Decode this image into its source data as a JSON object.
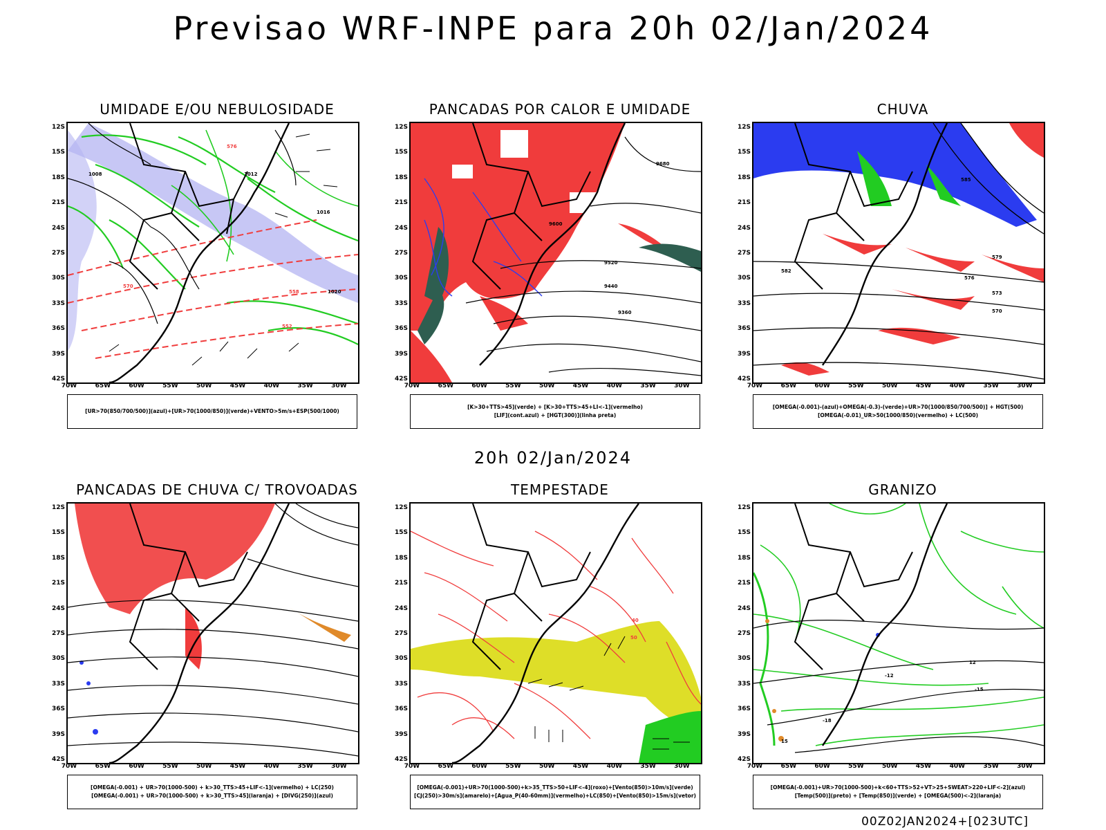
{
  "header": {
    "title": "Previsao WRF-INPE  para 20h 02/Jan/2024"
  },
  "middle": {
    "title": "20h 02/Jan/2024"
  },
  "footer": {
    "stamp": "00Z02JAN2024+[023UTC]"
  },
  "axes": {
    "lat_labels": [
      "12S",
      "15S",
      "18S",
      "21S",
      "24S",
      "27S",
      "30S",
      "33S",
      "36S",
      "39S",
      "42S"
    ],
    "lon_labels": [
      "70W",
      "65W",
      "60W",
      "55W",
      "50W",
      "45W",
      "40W",
      "35W",
      "30W"
    ]
  },
  "panels": [
    {
      "title": "UMIDADE E/OU NEBULOSIDADE",
      "legend": [
        "[UR>70(850/700/500)](azul)+[UR>70(1000/850)](verde)+VENTO>5m/s+ESP(500/1000)"
      ],
      "contour_labels": [
        "1008",
        "1012",
        "1016",
        "1020",
        "570",
        "576",
        "558",
        "552"
      ]
    },
    {
      "title": "PANCADAS POR CALOR E UMIDADE",
      "legend": [
        "[K>30+TTS>45](verde) + [K>30+TTS>45+LI<-1](vermelho)",
        "[LIF](cont.azul) + [HGT(300)](linha preta)"
      ],
      "contour_labels": [
        "9680",
        "9600",
        "9520",
        "9440",
        "9360"
      ]
    },
    {
      "title": "CHUVA",
      "legend": [
        "[OMEGA(-0.001)-(azul)+OMEGA(-0.3)-(verde)+UR>70(1000/850/700/500)] + HGT(500)",
        "[OMEGA(-0.01)_UR>50(1000/850)(vermelho) + LC(500)"
      ],
      "contour_labels": [
        "579",
        "576",
        "573",
        "570",
        "582",
        "585"
      ]
    },
    {
      "title": "PANCADAS DE CHUVA C/ TROVOADAS",
      "legend": [
        "[OMEGA(-0.001) + UR>70(1000-500) + k>30_TTS>45+LIF<-1](vermelho) + LC(250)",
        "[OMEGA(-0.001) + UR>70(1000-500) + k>30_TTS>45](laranja) + [DIVG(250)](azul)"
      ],
      "contour_labels": []
    },
    {
      "title": "TEMPESTADE",
      "legend": [
        "[OMEGA(-0.001)+UR>70(1000-500)+k>35_TTS>50+LIF<-4](roxo)+[Vento(850)>10m/s](verde)",
        "[CJ(250)>30m/s](amarelo)+[Agua_P(40-60mm)](vermelho)+LC(850)+[Vento(850)>15m/s](vetor)"
      ],
      "contour_labels": [
        "40",
        "50"
      ]
    },
    {
      "title": "GRANIZO",
      "legend": [
        "[OMEGA(-0.001)+UR>70(1000-500)+k<60+TTS>52+VT>25+SWEAT>220+LIF<-2](azul)",
        "[Temp(500)](preto) + [Temp(850)](verde) + [OMEGA(500)<-2](laranja)"
      ],
      "contour_labels": [
        "-12",
        "-15",
        "-18",
        "12",
        "15"
      ]
    }
  ],
  "colors": {
    "red": "#f03c3c",
    "blue": "#2b3cf0",
    "green": "#22cc22",
    "yellow": "#dede28",
    "lavender": "#b4b4f2",
    "darkgreen": "#2e5e50",
    "orange": "#e08a2a"
  }
}
